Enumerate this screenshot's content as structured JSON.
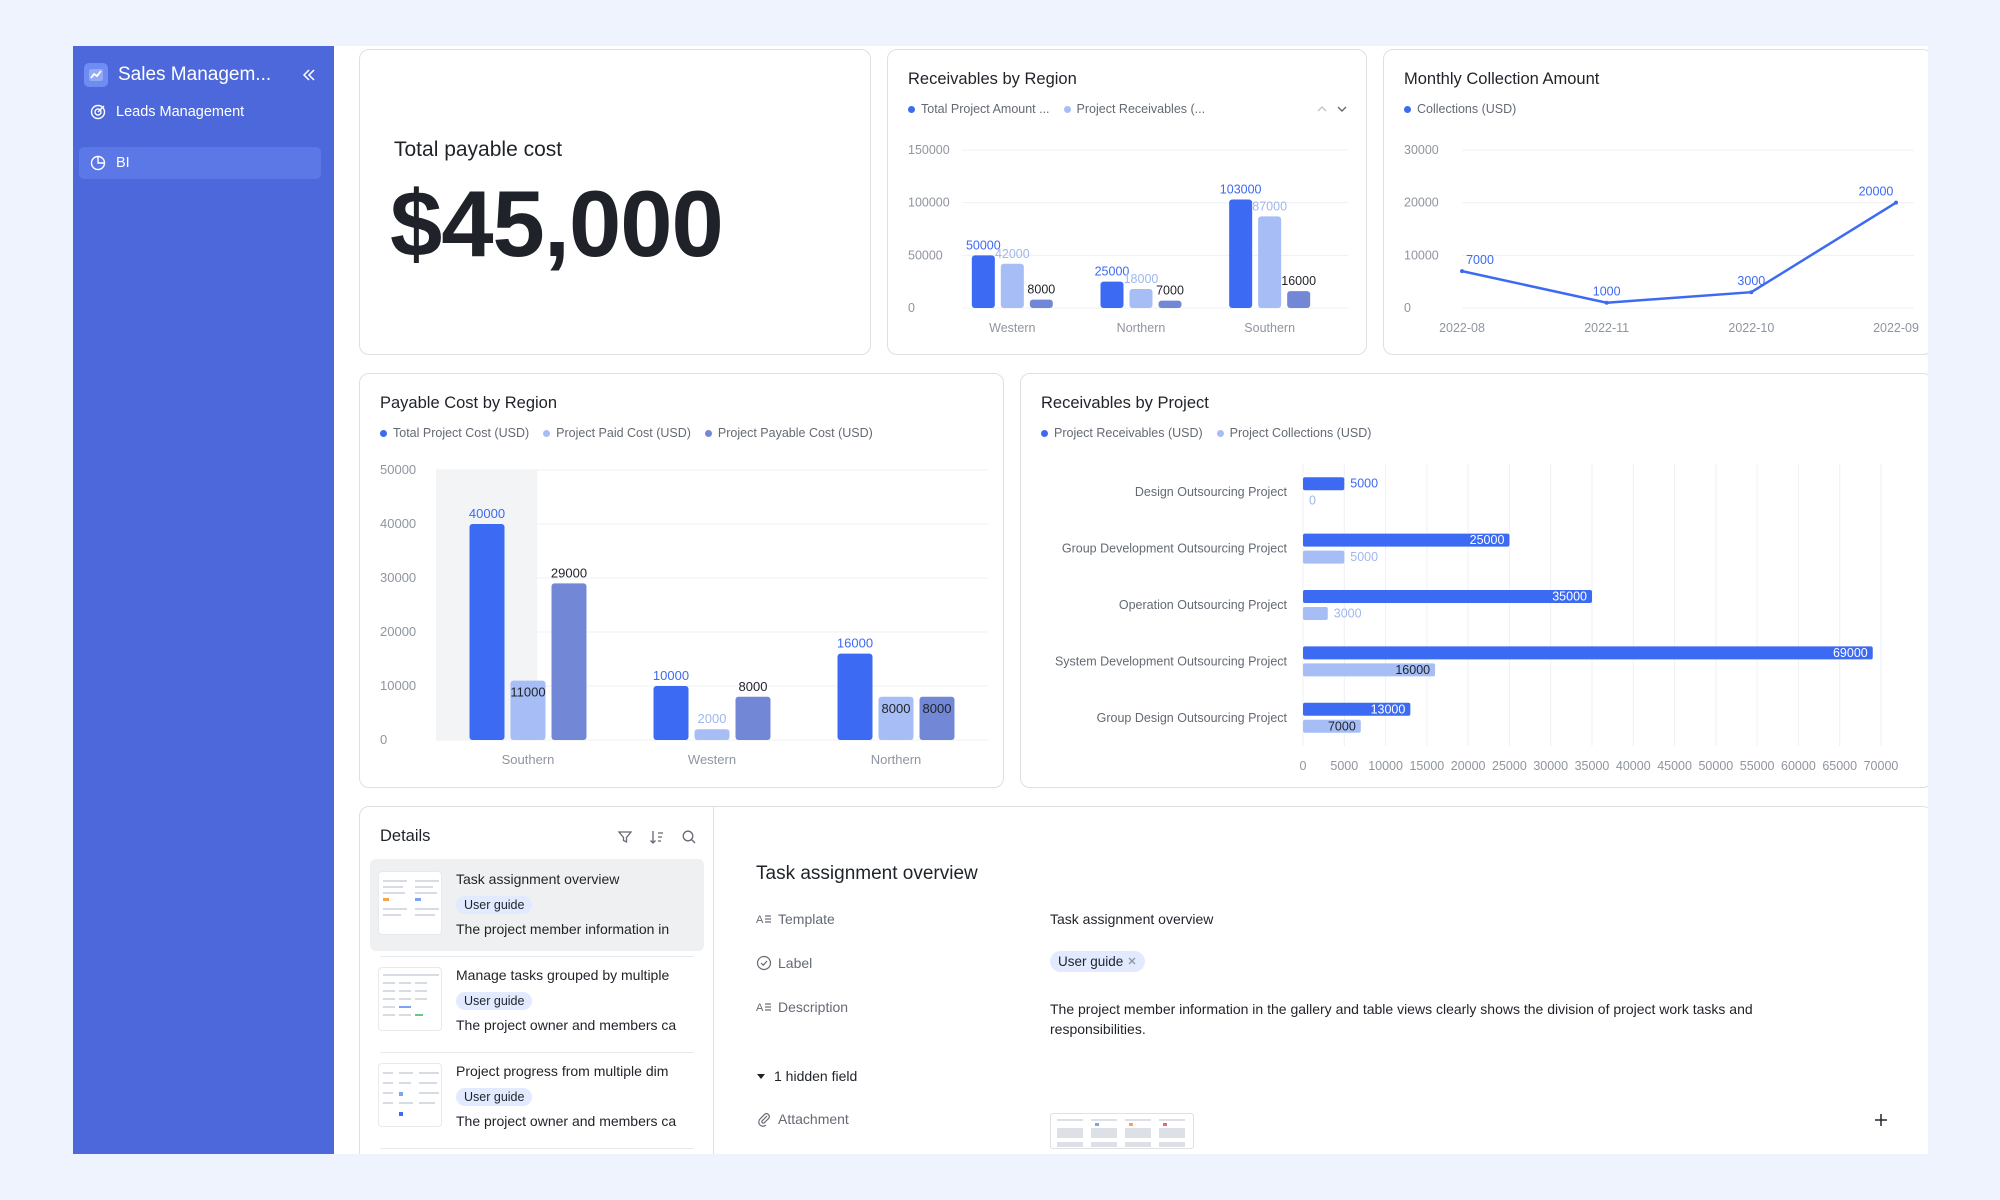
{
  "app": {
    "title": "Sales Managem...",
    "collapse_icon": "double-chevron-left-icon"
  },
  "sidebar": {
    "items": [
      {
        "label": "Leads Management",
        "icon": "target-icon",
        "active": false
      },
      {
        "label": "BI",
        "icon": "pie-chart-icon",
        "active": true
      }
    ]
  },
  "kpi": {
    "label": "Total payable cost",
    "value": "$45,000"
  },
  "colors": {
    "primary": "#3c6af2",
    "light": "#a6bdf5",
    "slate": "#7288d6",
    "sidebar": "#4d68db"
  },
  "receivables_by_region": {
    "title": "Receivables by Region",
    "legend": [
      "Total Project Amount ...",
      "Project Receivables (..."
    ]
  },
  "monthly_collection": {
    "title": "Monthly Collection Amount",
    "legend": [
      "Collections (USD)"
    ]
  },
  "payable_by_region": {
    "title": "Payable Cost by Region",
    "legend": [
      "Total Project Cost (USD)",
      "Project Paid Cost (USD)",
      "Project Payable Cost (USD)"
    ]
  },
  "receivables_by_project": {
    "title": "Receivables by Project",
    "legend": [
      "Project Receivables (USD)",
      "Project Collections (USD)"
    ]
  },
  "chart_data": [
    {
      "id": "receivables_by_region",
      "type": "bar",
      "categories": [
        "Western",
        "Northern",
        "Southern"
      ],
      "series": [
        {
          "name": "Total Project Amount ...",
          "values": [
            50000,
            25000,
            103000
          ],
          "color": "#3c6af2"
        },
        {
          "name": "Project Receivables (...",
          "values": [
            42000,
            18000,
            87000
          ],
          "color": "#a6bdf5"
        },
        {
          "values": [
            8000,
            7000,
            16000
          ],
          "color": "#7288d6"
        }
      ],
      "yticks": [
        0,
        50000,
        100000,
        150000
      ],
      "ylim": [
        0,
        150000
      ],
      "data_labels": [
        [
          "50000",
          "25000",
          "103000"
        ],
        [
          "42000",
          "18000",
          "87000"
        ],
        [
          "8000",
          "7000",
          "16000"
        ]
      ]
    },
    {
      "id": "monthly_collection",
      "type": "line",
      "x": [
        "2022-08",
        "2022-11",
        "2022-10",
        "2022-09"
      ],
      "series": [
        {
          "name": "Collections (USD)",
          "values": [
            7000,
            1000,
            3000,
            20000
          ],
          "color": "#3c6af2"
        }
      ],
      "yticks": [
        0,
        10000,
        20000,
        30000
      ],
      "ylim": [
        0,
        30000
      ],
      "data_labels": [
        "7000",
        "1000",
        "3000",
        "20000"
      ]
    },
    {
      "id": "payable_by_region",
      "type": "bar",
      "categories": [
        "Southern",
        "Western",
        "Northern"
      ],
      "series": [
        {
          "name": "Total Project Cost (USD)",
          "values": [
            40000,
            10000,
            16000
          ],
          "color": "#3c6af2"
        },
        {
          "name": "Project Paid Cost (USD)",
          "values": [
            11000,
            2000,
            8000
          ],
          "color": "#a6bdf5"
        },
        {
          "name": "Project Payable Cost (USD)",
          "values": [
            29000,
            8000,
            8000
          ],
          "color": "#7288d6"
        }
      ],
      "yticks": [
        0,
        10000,
        20000,
        30000,
        40000,
        50000
      ],
      "ylim": [
        0,
        50000
      ],
      "data_labels": [
        [
          "40000",
          "10000",
          "16000"
        ],
        [
          "11000",
          "2000",
          "8000"
        ],
        [
          "29000",
          "8000",
          "8000"
        ]
      ]
    },
    {
      "id": "receivables_by_project",
      "type": "bar",
      "orientation": "horizontal",
      "categories": [
        "Design Outsourcing Project",
        "Group Development Outsourcing Project",
        "Operation Outsourcing Project",
        "System Development Outsourcing Project",
        "Group Design Outsourcing Project"
      ],
      "series": [
        {
          "name": "Project Receivables (USD)",
          "values": [
            5000,
            25000,
            35000,
            69000,
            13000
          ],
          "color": "#3c6af2"
        },
        {
          "name": "Project Collections (USD)",
          "values": [
            0,
            5000,
            3000,
            16000,
            7000
          ],
          "color": "#a6bdf5"
        }
      ],
      "xticks": [
        0,
        5000,
        10000,
        15000,
        20000,
        25000,
        30000,
        35000,
        40000,
        45000,
        50000,
        55000,
        60000,
        65000,
        70000
      ],
      "xlim": [
        0,
        70000
      ],
      "data_labels": [
        [
          "5000",
          "25000",
          "35000",
          "69000",
          "13000"
        ],
        [
          "0",
          "5000",
          "3000",
          "16000",
          "7000"
        ]
      ]
    }
  ],
  "details": {
    "title": "Details",
    "tool_icons": [
      "filter-icon",
      "sort-icon",
      "search-icon"
    ],
    "items": [
      {
        "name": "Task assignment overview",
        "tag": "User guide",
        "desc": "The project member information in"
      },
      {
        "name": "Manage tasks grouped by multiple",
        "tag": "User guide",
        "desc": "The project owner and members ca"
      },
      {
        "name": "Project progress from multiple dim",
        "tag": "User guide",
        "desc": "The project owner and members ca"
      }
    ]
  },
  "record": {
    "title": "Task assignment overview",
    "fields": {
      "template_label": "Template",
      "template_value": "Task assignment overview",
      "label_label": "Label",
      "label_value": "User guide",
      "description_label": "Description",
      "description_value": "The project member information in the gallery and table views clearly shows the division of project work tasks and responsibilities.",
      "hidden_fields": "1 hidden field",
      "attachment_label": "Attachment"
    }
  }
}
